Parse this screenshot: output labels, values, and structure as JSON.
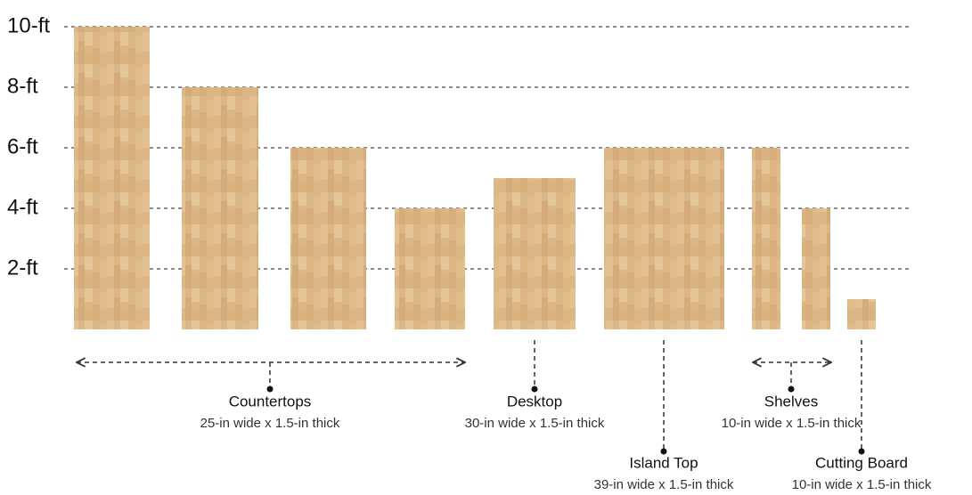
{
  "chart_data": {
    "type": "bar",
    "values": [
      10,
      8,
      6,
      4,
      5,
      6,
      6,
      4,
      1
    ],
    "color": "#dcb684",
    "ylim": [
      0,
      10
    ],
    "yticks": [
      {
        "value": 2,
        "label": "2-ft"
      },
      {
        "value": 4,
        "label": "4-ft"
      },
      {
        "value": 6,
        "label": "6-ft"
      },
      {
        "value": 8,
        "label": "8-ft"
      },
      {
        "value": 10,
        "label": "10-ft"
      }
    ],
    "grid": true,
    "annotations": [
      {
        "label": "Countertops",
        "note": "25-in wide x 1.5-in thick"
      },
      {
        "label": "Desktop",
        "note": "30-in wide x 1.5-in thick"
      },
      {
        "label": "Island Top",
        "note": "39-in wide x 1.5-in thick"
      },
      {
        "label": "Shelves",
        "note": "10-in wide x 1.5-in thick"
      },
      {
        "label": "Cutting Board",
        "note": "10-in wide x 1.5-in thick"
      }
    ]
  }
}
